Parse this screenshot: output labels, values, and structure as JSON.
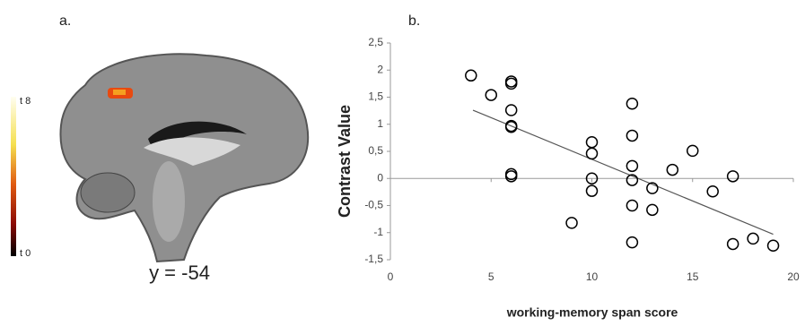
{
  "panel_a": {
    "label": "a.",
    "colorbar_max": "t 8",
    "colorbar_min": "t 0",
    "caption": "y = -54"
  },
  "chart_data": {
    "type": "scatter",
    "panel_label": "b.",
    "x_label": "working-memory span score",
    "y_label": "Contrast Value",
    "xlim": [
      0,
      20
    ],
    "xticks": [
      0,
      5,
      10,
      15,
      20
    ],
    "ylim": [
      -1.5,
      2.5
    ],
    "yticks": [
      {
        "value": 2.5,
        "label": "2,5"
      },
      2,
      {
        "value": 1.5,
        "label": "1,5"
      },
      1,
      {
        "value": 0.5,
        "label": "0,5"
      },
      0,
      {
        "value": -0.5,
        "label": "-0,5"
      },
      -1,
      {
        "value": -1.5,
        "label": "-1,5"
      }
    ],
    "series": [
      {
        "color": "#000000",
        "x": [
          4,
          5,
          6,
          6,
          6,
          6,
          6,
          6,
          6,
          10,
          10,
          10,
          10,
          9,
          12,
          12,
          12,
          12,
          12,
          12,
          13,
          13,
          14,
          15,
          16,
          17,
          17,
          18,
          19
        ],
        "values": [
          1.9,
          1.54,
          1.79,
          1.75,
          1.26,
          0.97,
          0.95,
          0.08,
          0.04,
          0.67,
          0.46,
          0.0,
          -0.23,
          -0.82,
          1.38,
          0.79,
          0.23,
          -0.03,
          -0.5,
          -1.18,
          -0.18,
          -0.58,
          0.16,
          0.51,
          -0.24,
          0.04,
          -1.21,
          -1.11,
          -1.24
        ]
      }
    ],
    "trendline": {
      "color": "#555555",
      "x": [
        4.1,
        19
      ],
      "values": [
        1.26,
        -1.03
      ]
    }
  }
}
